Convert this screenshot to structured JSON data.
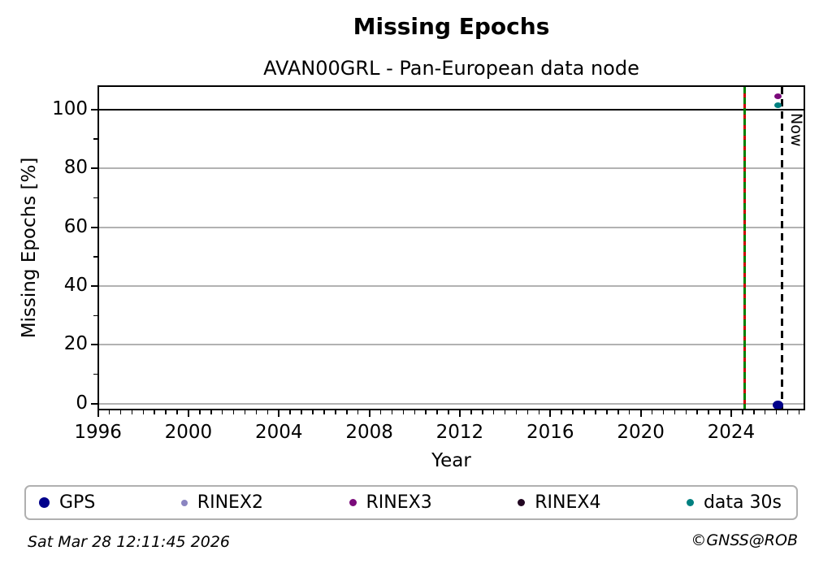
{
  "footer": {
    "timestamp": "Sat Mar 28 12:11:45 2026",
    "credit": "©GNSS@ROB"
  },
  "chart_data": {
    "type": "scatter",
    "title": "Missing Epochs",
    "subtitle": "AVAN00GRL - Pan-European data node",
    "xlabel": "Year",
    "ylabel": "Missing Epochs [%]",
    "x_range": [
      1996.05,
      2027.2
    ],
    "y_range": [
      -1.7,
      107.7
    ],
    "x_ticks": [
      1996,
      2000,
      2004,
      2008,
      2012,
      2016,
      2020,
      2024
    ],
    "x_minor_step": 0.5,
    "y_ticks": [
      0,
      20,
      40,
      60,
      80,
      100
    ],
    "y_minor_step": 10,
    "grid": {
      "horizontal": [
        0,
        20,
        40,
        60,
        80
      ],
      "color": "#b2b2b2",
      "vertical_grid": false
    },
    "reference_lines": [
      {
        "name": "hundred-percent-line",
        "axis": "y",
        "value": 100,
        "style": "solid",
        "color": "#000000"
      },
      {
        "name": "data-start-line",
        "axis": "x",
        "value": 2024.58,
        "style": "two-color-dashed",
        "colors": [
          "#008000",
          "#cc0000"
        ]
      },
      {
        "name": "now-line",
        "axis": "x",
        "value": 2026.23,
        "style": "dashed",
        "color": "#000000",
        "label": "Now"
      }
    ],
    "legend_position": "bottom",
    "series": [
      {
        "name": "GPS",
        "color": "#00008b",
        "marker_size": 13,
        "points": [
          {
            "x": 2026.08,
            "y": -0.5
          }
        ]
      },
      {
        "name": "RINEX2",
        "color": "#8b85c1",
        "marker_size": 8,
        "points": []
      },
      {
        "name": "RINEX3",
        "color": "#7a0a7a",
        "marker_size": 9,
        "points": [
          {
            "x": 2026.08,
            "y": 104.5
          }
        ]
      },
      {
        "name": "RINEX4",
        "color": "#220722",
        "marker_size": 9,
        "points": []
      },
      {
        "name": "data 30s",
        "color": "#008080",
        "marker_size": 9,
        "points": [
          {
            "x": 2026.06,
            "y": 101.5
          }
        ]
      }
    ]
  }
}
